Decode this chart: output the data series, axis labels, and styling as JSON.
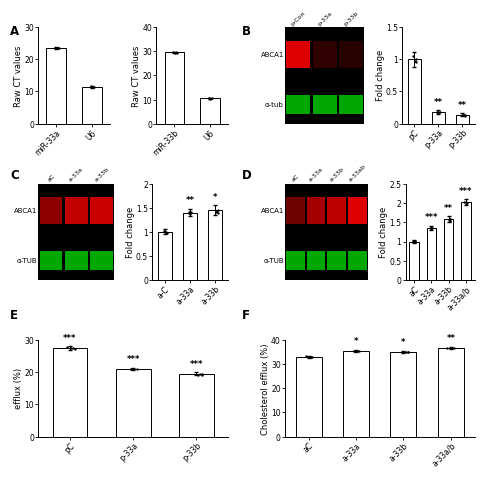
{
  "panel_A1": {
    "categories": [
      "miR-33a",
      "U6"
    ],
    "values": [
      23.5,
      11.5
    ],
    "errors": [
      0.3,
      0.3
    ],
    "ylabel": "Raw CT values",
    "ylim": [
      0,
      30
    ],
    "yticks": [
      0,
      10,
      20,
      30
    ]
  },
  "panel_A2": {
    "categories": [
      "miR-33b",
      "U6"
    ],
    "values": [
      29.5,
      10.5
    ],
    "errors": [
      0.3,
      0.3
    ],
    "ylabel": "Raw CT values",
    "ylim": [
      0,
      40
    ],
    "yticks": [
      0,
      10,
      20,
      30,
      40
    ]
  },
  "panel_B": {
    "categories": [
      "pC",
      "p-33a",
      "p-33b"
    ],
    "values": [
      1.0,
      0.18,
      0.14
    ],
    "errors": [
      0.12,
      0.03,
      0.02
    ],
    "ylabel": "Fold change",
    "ylim": [
      0,
      1.5
    ],
    "yticks": [
      0.0,
      0.5,
      1.0,
      1.5
    ],
    "sig": [
      "",
      "**",
      "**"
    ],
    "blot_labels": [
      "p-Con",
      "p-33a",
      "p-33b"
    ],
    "blot_abca1_alpha": [
      1.0,
      0.22,
      0.18
    ],
    "blot_tub_alpha": [
      0.9,
      0.9,
      0.9
    ],
    "blot_abca1_label": "ABCA1",
    "blot_tub_label": "α-tub"
  },
  "panel_C": {
    "categories": [
      "a-C",
      "a-33a",
      "a-33b"
    ],
    "values": [
      1.0,
      1.4,
      1.45
    ],
    "errors": [
      0.05,
      0.08,
      0.1
    ],
    "ylabel": "Fold change",
    "ylim": [
      0,
      2.0
    ],
    "yticks": [
      0.0,
      0.5,
      1.0,
      1.5,
      2.0
    ],
    "sig": [
      "",
      "**",
      "*"
    ],
    "blot_labels": [
      "aC",
      "a-33a",
      "a-33b"
    ],
    "blot_abca1_alpha": [
      0.65,
      0.88,
      0.92
    ],
    "blot_tub_alpha": [
      0.9,
      0.9,
      0.9
    ],
    "blot_abca1_label": "ABCA1",
    "blot_tub_label": "α-TUB"
  },
  "panel_D": {
    "categories": [
      "aC",
      "a-33a",
      "a-33b",
      "a-33a/b"
    ],
    "values": [
      1.0,
      1.35,
      1.58,
      2.02
    ],
    "errors": [
      0.05,
      0.06,
      0.08,
      0.07
    ],
    "ylabel": "Fold change",
    "ylim": [
      0,
      2.5
    ],
    "yticks": [
      0.0,
      0.5,
      1.0,
      1.5,
      2.0,
      2.5
    ],
    "sig": [
      "",
      "***",
      "**",
      "***"
    ],
    "blot_labels": [
      "aC",
      "a-33a",
      "a-33b",
      "a-33ab"
    ],
    "blot_abca1_alpha": [
      0.5,
      0.75,
      0.85,
      1.0
    ],
    "blot_tub_alpha": [
      0.9,
      0.9,
      0.9,
      0.9
    ],
    "blot_abca1_label": "ABCA1",
    "blot_tub_label": "α-TUB"
  },
  "panel_E": {
    "categories": [
      "pC",
      "p-33a",
      "p-33b"
    ],
    "values": [
      27.5,
      21.0,
      19.5
    ],
    "errors": [
      0.5,
      0.4,
      0.5
    ],
    "ylabel": "efflux (%)",
    "ylim": [
      0,
      30
    ],
    "yticks": [
      0,
      10,
      20,
      30
    ],
    "sig": [
      "***",
      "***",
      "***"
    ]
  },
  "panel_F": {
    "categories": [
      "aC",
      "a-33a",
      "a-33b",
      "a-33a/b"
    ],
    "values": [
      33.0,
      35.5,
      35.2,
      36.8
    ],
    "errors": [
      0.4,
      0.5,
      0.4,
      0.4
    ],
    "ylabel": "Cholesterol efflux (%)",
    "ylim": [
      0,
      40
    ],
    "yticks": [
      0,
      10,
      20,
      30,
      40
    ],
    "sig": [
      "",
      "*",
      "*",
      "**"
    ]
  },
  "bar_color": "#ffffff",
  "bar_edgecolor": "#000000",
  "bar_width": 0.55,
  "errorbar_color": "#000000",
  "font_size": 6.0,
  "label_font_size": 8.5,
  "tick_font_size": 5.5,
  "sig_font_size": 6.0
}
